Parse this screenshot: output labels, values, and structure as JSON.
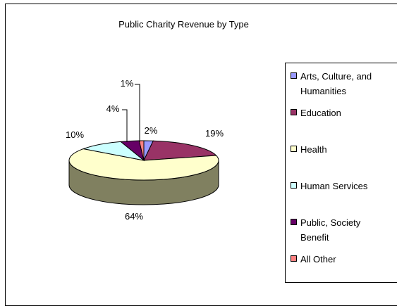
{
  "chart_data": {
    "type": "pie",
    "title": "Public Charity Revenue by Type",
    "slices": [
      {
        "label": "Arts, Culture, and Humanities",
        "legend_lines": [
          "Arts, Culture, and",
          "Humanities"
        ],
        "value": 2,
        "display": "2%",
        "color": "#9999FF"
      },
      {
        "label": "Education",
        "legend_lines": [
          "Education"
        ],
        "value": 19,
        "display": "19%",
        "color": "#993366"
      },
      {
        "label": "Health",
        "legend_lines": [
          "Health"
        ],
        "value": 64,
        "display": "64%",
        "color": "#FFFFCC"
      },
      {
        "label": "Human Services",
        "legend_lines": [
          "Human Services"
        ],
        "value": 10,
        "display": "10%",
        "color": "#CCFFFF"
      },
      {
        "label": "Public, Society Benefit",
        "legend_lines": [
          "Public, Society",
          "Benefit"
        ],
        "value": 4,
        "display": "4%",
        "color": "#660066"
      },
      {
        "label": "All Other",
        "legend_lines": [
          "All Other"
        ],
        "value": 1,
        "display": "1%",
        "color": "#FF8080"
      }
    ],
    "legend_position": "right",
    "side_color": "#808060"
  }
}
